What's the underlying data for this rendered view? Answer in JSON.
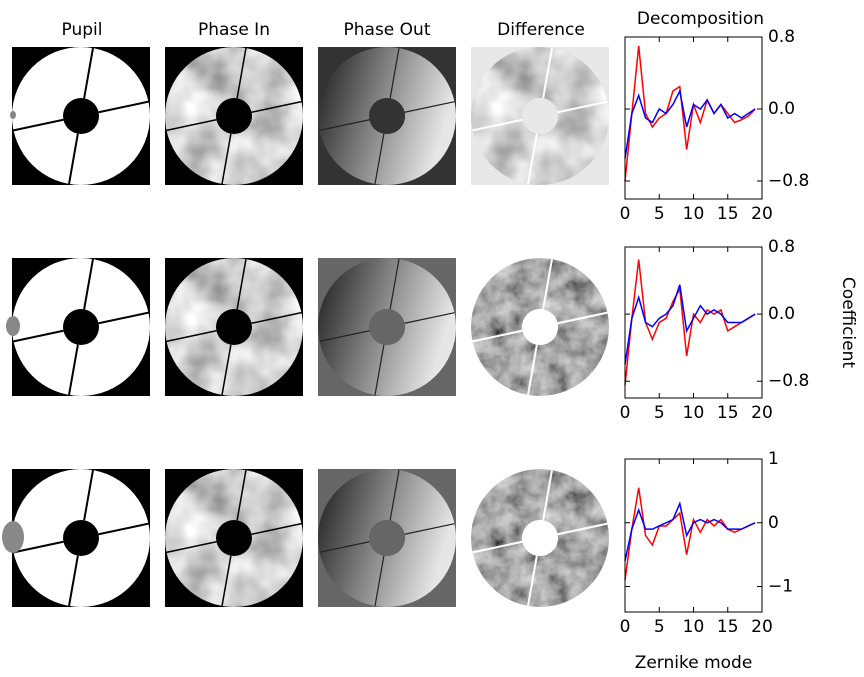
{
  "column_titles": [
    "Pupil",
    "Phase In",
    "Phase Out",
    "Difference"
  ],
  "chart_data": [
    {
      "type": "line",
      "title": "Decomposition",
      "x": [
        0,
        1,
        2,
        3,
        4,
        5,
        6,
        7,
        8,
        9,
        10,
        11,
        12,
        13,
        14,
        15,
        16,
        17,
        18,
        19
      ],
      "series": [
        {
          "color": "#ff0000",
          "values": [
            -0.8,
            -0.05,
            0.7,
            -0.05,
            -0.2,
            -0.1,
            -0.05,
            0.2,
            0.25,
            -0.45,
            0.05,
            -0.15,
            0.1,
            -0.05,
            0.05,
            -0.05,
            -0.15,
            -0.12,
            -0.08,
            0.0
          ]
        },
        {
          "color": "#0000ff",
          "values": [
            -0.55,
            -0.05,
            0.15,
            -0.1,
            -0.15,
            0.0,
            -0.05,
            0.05,
            0.2,
            -0.2,
            0.05,
            0.0,
            0.1,
            -0.05,
            0.05,
            -0.1,
            -0.05,
            -0.1,
            -0.05,
            0.0
          ]
        }
      ],
      "xlim": [
        0,
        20
      ],
      "xticks": [
        0,
        5,
        10,
        15,
        20
      ],
      "ylim": [
        -1,
        0.8
      ],
      "yticks": [
        0.8,
        {
          "value": 0,
          "label": "0.0"
        },
        {
          "value": -0.8,
          "label": "−0.8"
        }
      ]
    },
    {
      "type": "line",
      "ylabel": "Coefficient",
      "x": [
        0,
        1,
        2,
        3,
        4,
        5,
        6,
        7,
        8,
        9,
        10,
        11,
        12,
        13,
        14,
        15,
        16,
        17,
        18,
        19
      ],
      "series": [
        {
          "color": "#ff0000",
          "values": [
            -0.85,
            -0.05,
            0.65,
            -0.1,
            -0.3,
            -0.1,
            -0.05,
            0.15,
            0.3,
            -0.5,
            0.0,
            -0.1,
            0.05,
            0.0,
            0.05,
            -0.2,
            -0.15,
            -0.1,
            -0.05,
            0.0
          ]
        },
        {
          "color": "#0000ff",
          "values": [
            -0.6,
            -0.05,
            0.2,
            -0.1,
            -0.15,
            -0.05,
            0.0,
            0.1,
            0.35,
            -0.2,
            -0.05,
            0.1,
            0.0,
            0.05,
            0.0,
            -0.1,
            -0.1,
            -0.1,
            -0.05,
            0.0
          ]
        }
      ],
      "xlim": [
        0,
        20
      ],
      "xticks": [
        0,
        5,
        10,
        15,
        20
      ],
      "ylim": [
        -1,
        0.8
      ],
      "yticks": [
        0.8,
        {
          "value": 0,
          "label": "0.0"
        },
        {
          "value": -0.8,
          "label": "−0.8"
        }
      ]
    },
    {
      "type": "line",
      "xlabel": "Zernike mode",
      "x": [
        0,
        1,
        2,
        3,
        4,
        5,
        6,
        7,
        8,
        9,
        10,
        11,
        12,
        13,
        14,
        15,
        16,
        17,
        18,
        19
      ],
      "series": [
        {
          "color": "#ff0000",
          "values": [
            -0.9,
            -0.1,
            0.55,
            -0.2,
            -0.35,
            -0.05,
            -0.05,
            0.05,
            0.15,
            -0.5,
            0.05,
            -0.15,
            0.05,
            -0.05,
            0.05,
            -0.1,
            -0.15,
            -0.1,
            -0.05,
            0.0
          ]
        },
        {
          "color": "#0000ff",
          "values": [
            -0.6,
            -0.1,
            0.2,
            -0.1,
            -0.1,
            -0.05,
            0.0,
            0.05,
            0.3,
            -0.2,
            0.0,
            0.05,
            0.0,
            0.05,
            0.0,
            -0.1,
            -0.1,
            -0.1,
            -0.05,
            0.0
          ]
        }
      ],
      "xlim": [
        0,
        20
      ],
      "xticks": [
        0,
        5,
        10,
        15,
        20
      ],
      "ylim": [
        -1.4,
        1
      ],
      "yticks": [
        1,
        0,
        {
          "value": -1,
          "label": "−1"
        }
      ]
    }
  ]
}
